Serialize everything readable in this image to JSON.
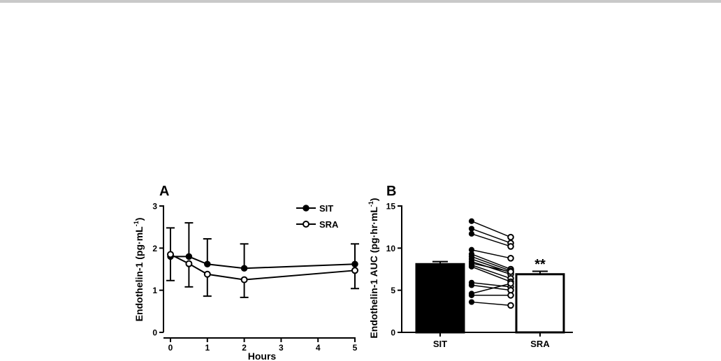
{
  "chart_data": [
    {
      "panel_label": "A",
      "type": "line",
      "xlabel": "Hours",
      "ylabel_main": "Endothelin-1 (pg·mL",
      "ylabel_sup": "-1",
      "ylabel_close": ")",
      "xlim": [
        0,
        5
      ],
      "ylim": [
        0,
        3
      ],
      "xticks": [
        "0",
        "1",
        "2",
        "3",
        "4",
        "5"
      ],
      "yticks": [
        "0",
        "1",
        "2",
        "3"
      ],
      "x": [
        0,
        0.5,
        1,
        2,
        5
      ],
      "series": [
        {
          "name": "SIT",
          "marker": "filled",
          "values": [
            1.8,
            1.8,
            1.62,
            1.52,
            1.62
          ],
          "err_upper": [
            0.68,
            0.8,
            0.6,
            0.58,
            0.48
          ]
        },
        {
          "name": "SRA",
          "marker": "open",
          "values": [
            1.85,
            1.63,
            1.38,
            1.25,
            1.47
          ],
          "err_lower": [
            0.62,
            0.55,
            0.52,
            0.42,
            0.43
          ]
        }
      ],
      "legend_position": "top-right"
    },
    {
      "panel_label": "B",
      "type": "bar",
      "ylabel_main": "Endothelin-1 AUC (pg·hr·mL",
      "ylabel_sup": "-1",
      "ylabel_close": ")",
      "ylim": [
        0,
        15
      ],
      "yticks": [
        "0",
        "5",
        "10",
        "15"
      ],
      "categories": [
        "SIT",
        "SRA"
      ],
      "values": [
        8.1,
        6.9
      ],
      "sem": [
        0.3,
        0.35
      ],
      "bar_colors": [
        "#000000",
        "#ffffff"
      ],
      "significance": "**",
      "paired": [
        {
          "sit": 13.2,
          "sra": 11.3
        },
        {
          "sit": 12.3,
          "sra": 10.6
        },
        {
          "sit": 11.7,
          "sra": 10.2
        },
        {
          "sit": 9.8,
          "sra": 8.8
        },
        {
          "sit": 9.3,
          "sra": 7.5
        },
        {
          "sit": 9.0,
          "sra": 7.3
        },
        {
          "sit": 8.7,
          "sra": 7.1
        },
        {
          "sit": 8.4,
          "sra": 6.9
        },
        {
          "sit": 8.2,
          "sra": 7.2
        },
        {
          "sit": 8.0,
          "sra": 6.4
        },
        {
          "sit": 7.8,
          "sra": 6.0
        },
        {
          "sit": 5.9,
          "sra": 5.4
        },
        {
          "sit": 5.6,
          "sra": 5.0
        },
        {
          "sit": 4.6,
          "sra": 5.8
        },
        {
          "sit": 4.4,
          "sra": 4.4
        },
        {
          "sit": 3.6,
          "sra": 3.2
        }
      ]
    }
  ]
}
